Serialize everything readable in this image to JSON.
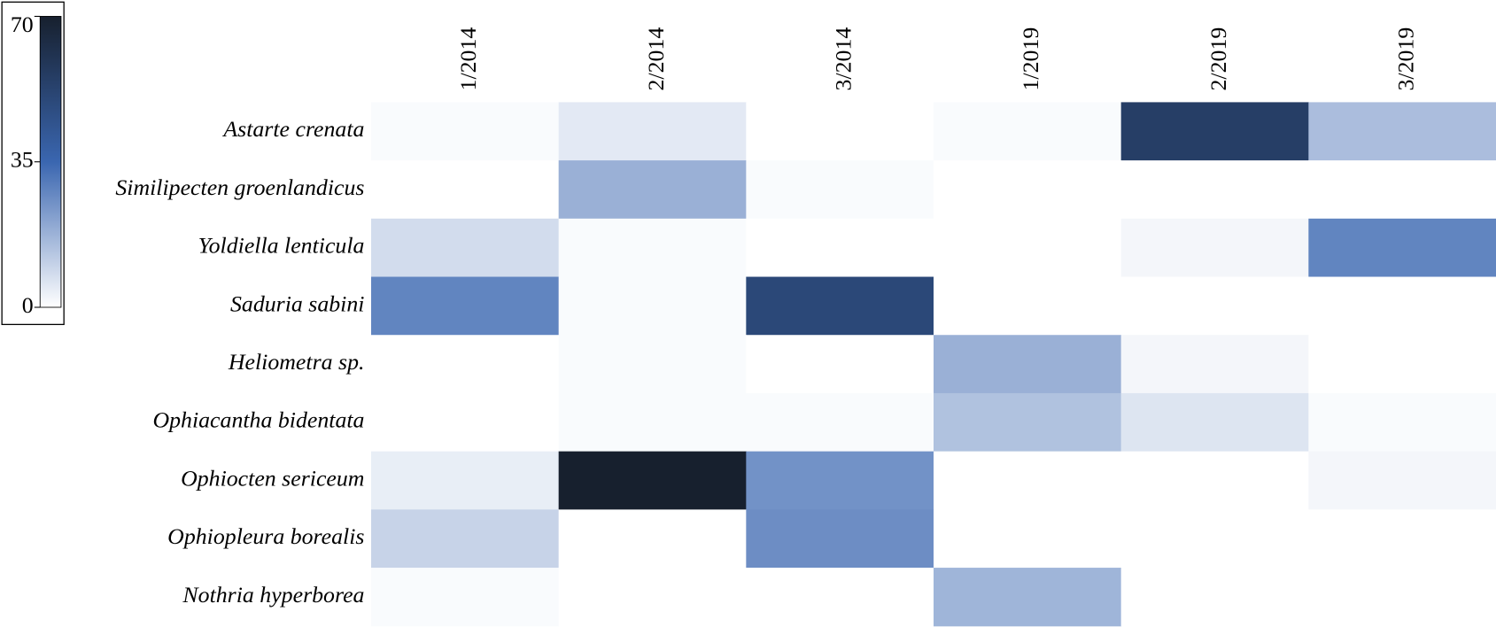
{
  "chart_data": {
    "type": "heatmap",
    "x": [
      "1/2014",
      "2/2014",
      "3/2014",
      "1/2019",
      "2/2019",
      "3/2019"
    ],
    "y": [
      "Astarte crenata",
      "Similipecten groenlandicus",
      "Yoldiella lenticula",
      "Saduria sabini",
      "Heliometra sp.",
      "Ophiacantha bidentata",
      "Ophiocten sericeum",
      "Ophiopleura borealis",
      "Nothria hyperborea"
    ],
    "z": [
      [
        1,
        5,
        0,
        1,
        55,
        15
      ],
      [
        0,
        18,
        1,
        0,
        0,
        0
      ],
      [
        8,
        1,
        0,
        0,
        2,
        28
      ],
      [
        28,
        1,
        50,
        0,
        0,
        0
      ],
      [
        0,
        1,
        0,
        18,
        2,
        0
      ],
      [
        0,
        1,
        1,
        14,
        6,
        1
      ],
      [
        4,
        70,
        25,
        0,
        0,
        2
      ],
      [
        10,
        0,
        26,
        0,
        0,
        0
      ],
      [
        1,
        0,
        0,
        17,
        0,
        0
      ]
    ],
    "zlim": [
      0,
      70
    ],
    "zticks": [
      0,
      35,
      70
    ],
    "colors": [
      "#ffffff",
      "#3a66b0",
      "#17202e"
    ]
  }
}
